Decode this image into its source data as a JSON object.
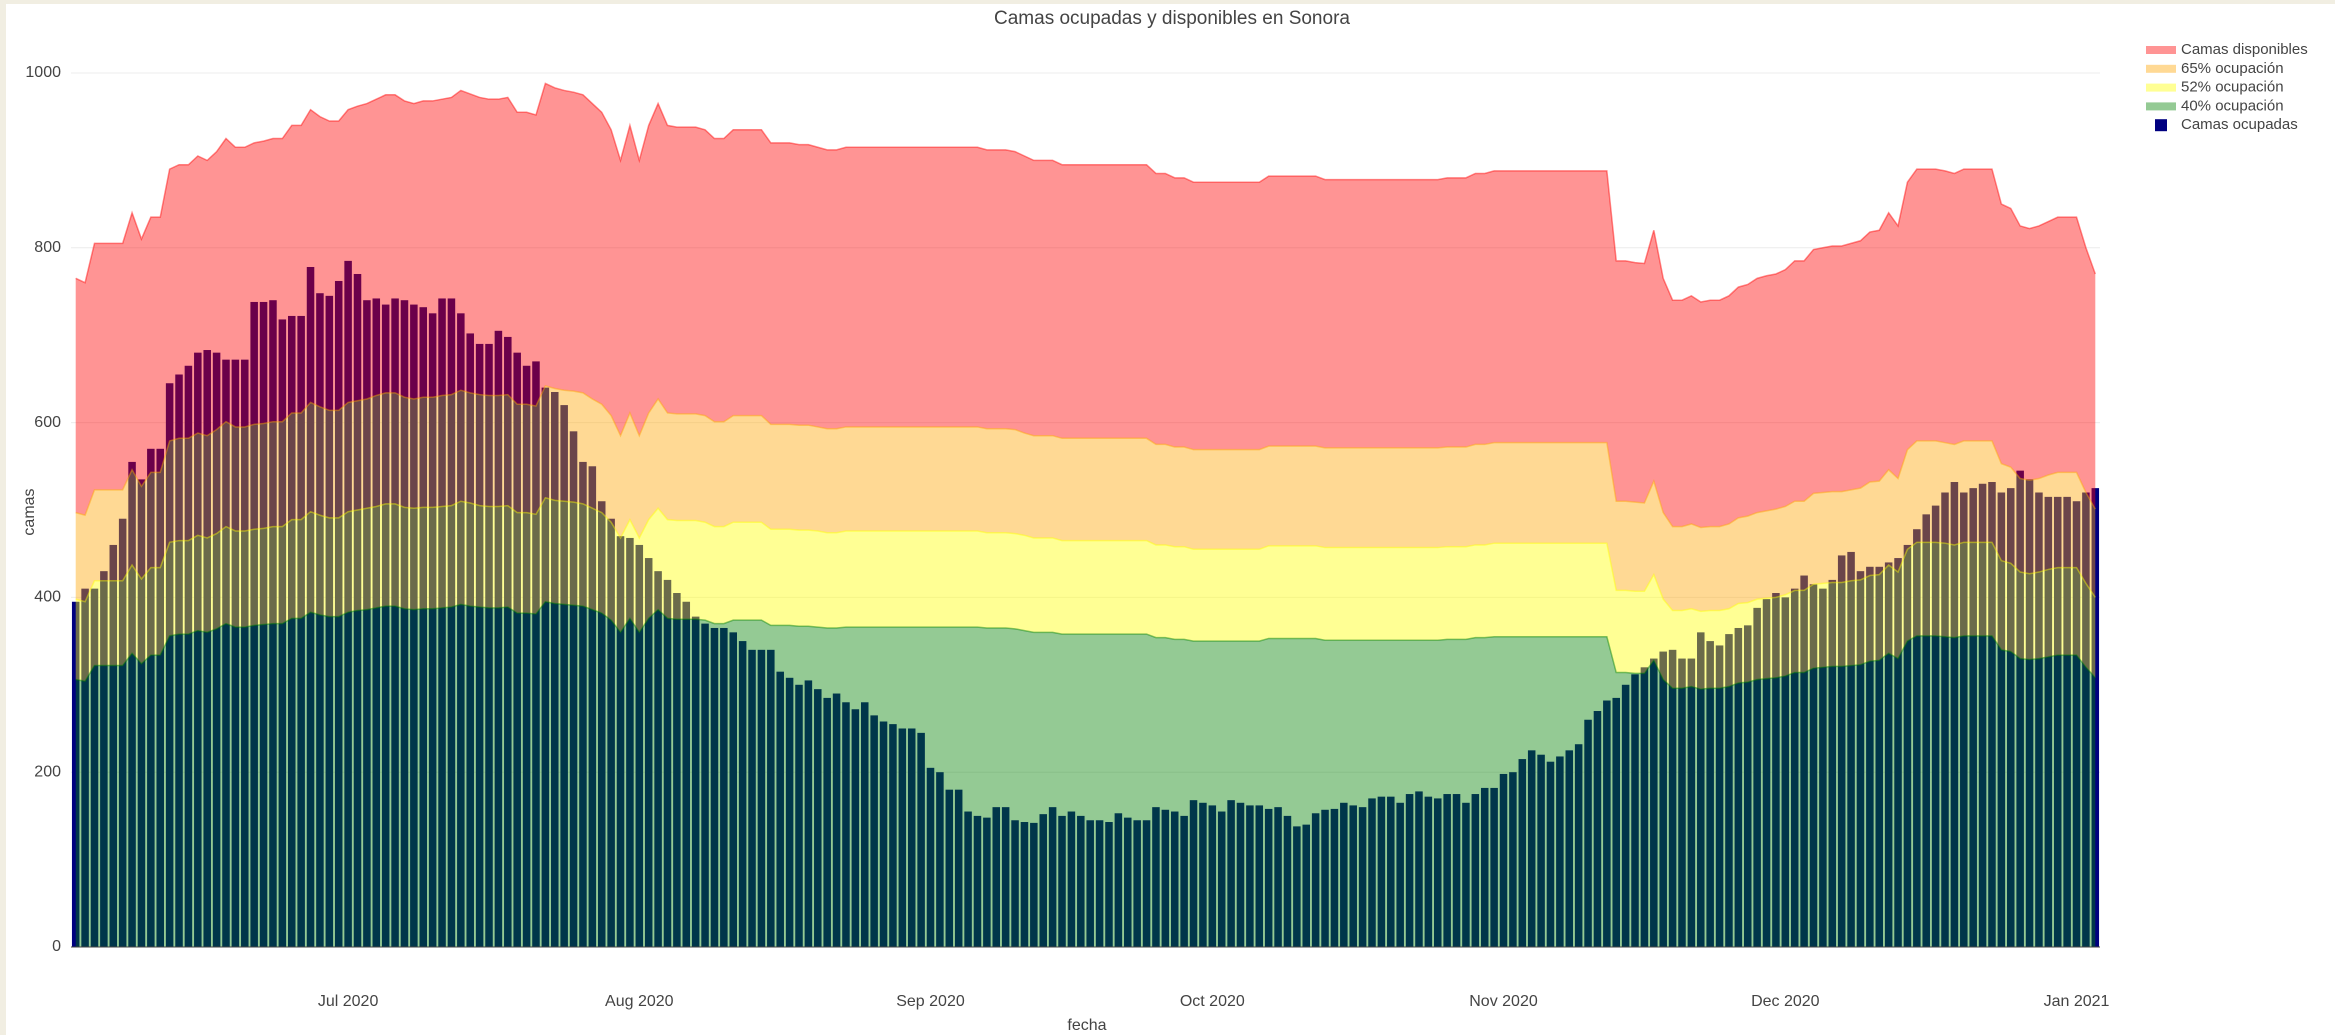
{
  "chart_data": {
    "type": "bar",
    "title": "Camas ocupadas y disponibles en Sonora",
    "x_label": "fecha",
    "y_label": "camas",
    "ylim": [
      0,
      1040
    ],
    "yticks": [
      0,
      200,
      400,
      600,
      800,
      1000
    ],
    "grid": true,
    "categories": [
      null,
      null,
      null,
      null,
      null,
      null,
      null,
      null,
      null,
      null,
      null,
      null,
      null,
      null,
      null,
      null,
      null,
      null,
      null,
      null,
      null,
      null,
      null,
      null,
      null,
      null,
      null,
      null,
      null,
      "Jul 2020",
      null,
      null,
      null,
      null,
      null,
      null,
      null,
      null,
      null,
      null,
      null,
      null,
      null,
      null,
      null,
      null,
      null,
      null,
      null,
      null,
      null,
      null,
      null,
      null,
      null,
      null,
      null,
      null,
      null,
      null,
      "Aug 2020",
      null,
      null,
      null,
      null,
      null,
      null,
      null,
      null,
      null,
      null,
      null,
      null,
      null,
      null,
      null,
      null,
      null,
      null,
      null,
      null,
      null,
      null,
      null,
      null,
      null,
      null,
      null,
      null,
      null,
      null,
      "Sep 2020",
      null,
      null,
      null,
      null,
      null,
      null,
      null,
      null,
      null,
      null,
      null,
      null,
      null,
      null,
      null,
      null,
      null,
      null,
      null,
      null,
      null,
      null,
      null,
      null,
      null,
      null,
      null,
      null,
      null,
      "Oct 2020",
      null,
      null,
      null,
      null,
      null,
      null,
      null,
      null,
      null,
      null,
      null,
      null,
      null,
      null,
      null,
      null,
      null,
      null,
      null,
      null,
      null,
      null,
      null,
      null,
      null,
      null,
      null,
      null,
      null,
      null,
      "Nov 2020",
      null,
      null,
      null,
      null,
      null,
      null,
      null,
      null,
      null,
      null,
      null,
      null,
      null,
      null,
      null,
      null,
      null,
      null,
      null,
      null,
      null,
      null,
      null,
      null,
      null,
      null,
      null,
      null,
      null,
      "Dec 2020",
      null,
      null,
      null,
      null,
      null,
      null,
      null,
      null,
      null,
      null,
      null,
      null,
      null,
      null,
      null,
      null,
      null,
      null,
      null,
      null,
      null,
      null,
      null,
      null,
      null,
      null,
      null,
      null,
      null,
      null,
      "Jan 2021",
      null,
      null
    ],
    "series": [
      {
        "name": "Camas disponibles",
        "type": "area",
        "color": "#ff0000",
        "values": [
          765,
          760,
          805,
          805,
          805,
          805,
          840,
          810,
          835,
          835,
          890,
          895,
          895,
          905,
          900,
          910,
          925,
          915,
          915,
          920,
          922,
          925,
          925,
          940,
          940,
          958,
          950,
          945,
          945,
          958,
          962,
          965,
          970,
          975,
          975,
          968,
          965,
          968,
          968,
          970,
          972,
          980,
          976,
          972,
          970,
          970,
          972,
          955,
          955,
          952,
          988,
          983,
          980,
          978,
          975,
          965,
          955,
          935,
          900,
          940,
          900,
          940,
          965,
          940,
          938,
          938,
          938,
          935,
          925,
          925,
          935,
          935,
          935,
          935,
          920,
          920,
          920,
          918,
          918,
          915,
          912,
          912,
          915,
          915,
          915,
          915,
          915,
          915,
          915,
          915,
          915,
          915,
          915,
          915,
          915,
          915,
          915,
          912,
          912,
          912,
          910,
          905,
          900,
          900,
          900,
          895,
          895,
          895,
          895,
          895,
          895,
          895,
          895,
          895,
          895,
          885,
          885,
          880,
          880,
          875,
          875,
          875,
          875,
          875,
          875,
          875,
          875,
          882,
          882,
          882,
          882,
          882,
          882,
          878,
          878,
          878,
          878,
          878,
          878,
          878,
          878,
          878,
          878,
          878,
          878,
          878,
          880,
          880,
          880,
          885,
          885,
          888,
          888,
          888,
          888,
          888,
          888,
          888,
          888,
          888,
          888,
          888,
          888,
          888,
          785,
          785,
          783,
          782,
          820,
          765,
          740,
          740,
          745,
          738,
          740,
          740,
          745,
          755,
          758,
          765,
          768,
          770,
          775,
          785,
          785,
          798,
          800,
          802,
          802,
          805,
          808,
          818,
          820,
          840,
          825,
          875,
          890,
          890,
          890,
          888,
          885,
          890,
          890,
          890,
          890,
          850,
          845,
          825,
          822,
          825,
          830,
          835,
          835,
          835,
          800,
          770
        ]
      },
      {
        "name": "65% ocupación",
        "type": "area",
        "color": "#ffa500",
        "values": [
          497,
          494,
          523,
          523,
          523,
          523,
          546,
          527,
          543,
          543,
          579,
          582,
          582,
          588,
          585,
          592,
          601,
          595,
          595,
          598,
          599,
          601,
          601,
          611,
          611,
          623,
          618,
          614,
          614,
          623,
          625,
          627,
          631,
          634,
          634,
          629,
          627,
          629,
          629,
          631,
          632,
          637,
          634,
          632,
          631,
          631,
          632,
          621,
          621,
          619,
          642,
          639,
          637,
          636,
          634,
          627,
          621,
          608,
          585,
          611,
          585,
          611,
          627,
          611,
          610,
          610,
          610,
          608,
          601,
          601,
          608,
          608,
          608,
          608,
          598,
          598,
          598,
          597,
          597,
          595,
          593,
          593,
          595,
          595,
          595,
          595,
          595,
          595,
          595,
          595,
          595,
          595,
          595,
          595,
          595,
          595,
          595,
          593,
          593,
          593,
          592,
          588,
          585,
          585,
          585,
          582,
          582,
          582,
          582,
          582,
          582,
          582,
          582,
          582,
          582,
          575,
          575,
          572,
          572,
          569,
          569,
          569,
          569,
          569,
          569,
          569,
          569,
          573,
          573,
          573,
          573,
          573,
          573,
          571,
          571,
          571,
          571,
          571,
          571,
          571,
          571,
          571,
          571,
          571,
          571,
          571,
          572,
          572,
          572,
          575,
          575,
          577,
          577,
          577,
          577,
          577,
          577,
          577,
          577,
          577,
          577,
          577,
          577,
          577,
          510,
          510,
          509,
          508,
          533,
          497,
          481,
          481,
          484,
          480,
          481,
          481,
          484,
          491,
          493,
          497,
          499,
          501,
          504,
          510,
          510,
          519,
          520,
          521,
          521,
          523,
          525,
          532,
          533,
          546,
          536,
          569,
          579,
          579,
          579,
          577,
          575,
          579,
          579,
          579,
          579,
          553,
          549,
          536,
          534,
          536,
          540,
          543,
          543,
          543,
          520,
          501
        ]
      },
      {
        "name": "52% ocupación",
        "type": "area",
        "color": "#ffff00",
        "values": [
          398,
          395,
          419,
          419,
          419,
          419,
          437,
          421,
          434,
          434,
          463,
          465,
          465,
          471,
          468,
          473,
          481,
          476,
          476,
          478,
          479,
          481,
          481,
          489,
          489,
          498,
          494,
          491,
          491,
          498,
          500,
          502,
          504,
          507,
          507,
          503,
          502,
          503,
          503,
          504,
          505,
          510,
          508,
          505,
          504,
          504,
          505,
          497,
          497,
          495,
          514,
          511,
          510,
          509,
          507,
          502,
          497,
          486,
          468,
          489,
          468,
          489,
          502,
          489,
          488,
          488,
          488,
          486,
          481,
          481,
          486,
          486,
          486,
          486,
          478,
          478,
          478,
          477,
          477,
          476,
          474,
          474,
          476,
          476,
          476,
          476,
          476,
          476,
          476,
          476,
          476,
          476,
          476,
          476,
          476,
          476,
          476,
          474,
          474,
          474,
          473,
          471,
          468,
          468,
          468,
          465,
          465,
          465,
          465,
          465,
          465,
          465,
          465,
          465,
          465,
          460,
          460,
          458,
          458,
          455,
          455,
          455,
          455,
          455,
          455,
          455,
          455,
          459,
          459,
          459,
          459,
          459,
          459,
          457,
          457,
          457,
          457,
          457,
          457,
          457,
          457,
          457,
          457,
          457,
          457,
          457,
          458,
          458,
          458,
          460,
          460,
          462,
          462,
          462,
          462,
          462,
          462,
          462,
          462,
          462,
          462,
          462,
          462,
          462,
          408,
          408,
          407,
          407,
          426,
          398,
          385,
          385,
          387,
          384,
          385,
          385,
          387,
          393,
          394,
          398,
          399,
          400,
          403,
          408,
          408,
          415,
          416,
          417,
          417,
          419,
          420,
          425,
          426,
          437,
          429,
          455,
          463,
          463,
          463,
          462,
          460,
          463,
          463,
          463,
          463,
          442,
          439,
          429,
          427,
          429,
          432,
          434,
          434,
          434,
          416,
          400
        ]
      },
      {
        "name": "40% ocupación",
        "type": "area",
        "color": "#008000",
        "values": [
          306,
          304,
          322,
          322,
          322,
          322,
          336,
          324,
          334,
          334,
          356,
          358,
          358,
          362,
          360,
          364,
          370,
          366,
          366,
          368,
          369,
          370,
          370,
          376,
          376,
          383,
          380,
          378,
          378,
          383,
          385,
          386,
          388,
          390,
          390,
          387,
          386,
          387,
          387,
          388,
          389,
          392,
          390,
          389,
          388,
          388,
          389,
          382,
          382,
          381,
          395,
          393,
          392,
          391,
          390,
          386,
          382,
          374,
          360,
          376,
          360,
          376,
          386,
          376,
          375,
          375,
          375,
          374,
          370,
          370,
          374,
          374,
          374,
          374,
          368,
          368,
          368,
          367,
          367,
          366,
          365,
          365,
          366,
          366,
          366,
          366,
          366,
          366,
          366,
          366,
          366,
          366,
          366,
          366,
          366,
          366,
          366,
          365,
          365,
          365,
          364,
          362,
          360,
          360,
          360,
          358,
          358,
          358,
          358,
          358,
          358,
          358,
          358,
          358,
          358,
          354,
          354,
          352,
          352,
          350,
          350,
          350,
          350,
          350,
          350,
          350,
          350,
          353,
          353,
          353,
          353,
          353,
          353,
          351,
          351,
          351,
          351,
          351,
          351,
          351,
          351,
          351,
          351,
          351,
          351,
          351,
          352,
          352,
          352,
          354,
          354,
          355,
          355,
          355,
          355,
          355,
          355,
          355,
          355,
          355,
          355,
          355,
          355,
          355,
          314,
          314,
          313,
          313,
          328,
          306,
          296,
          296,
          298,
          295,
          296,
          296,
          298,
          302,
          303,
          306,
          307,
          308,
          310,
          314,
          314,
          319,
          320,
          321,
          321,
          322,
          323,
          327,
          328,
          336,
          330,
          350,
          356,
          356,
          356,
          355,
          354,
          356,
          356,
          356,
          356,
          340,
          338,
          330,
          329,
          330,
          332,
          334,
          334,
          334,
          320,
          308
        ]
      },
      {
        "name": "Camas ocupadas",
        "type": "bar",
        "color": "#000080",
        "values": [
          395,
          410,
          410,
          430,
          460,
          490,
          555,
          535,
          570,
          570,
          645,
          655,
          665,
          680,
          683,
          680,
          672,
          672,
          672,
          738,
          738,
          740,
          718,
          722,
          722,
          778,
          748,
          745,
          762,
          785,
          770,
          740,
          742,
          735,
          742,
          740,
          735,
          732,
          725,
          742,
          742,
          725,
          702,
          690,
          690,
          705,
          698,
          680,
          665,
          670,
          640,
          635,
          620,
          590,
          555,
          550,
          510,
          490,
          470,
          468,
          460,
          445,
          430,
          420,
          405,
          395,
          378,
          370,
          365,
          365,
          360,
          350,
          340,
          340,
          340,
          315,
          308,
          300,
          305,
          295,
          285,
          290,
          280,
          272,
          280,
          265,
          258,
          255,
          250,
          250,
          245,
          205,
          200,
          180,
          180,
          155,
          150,
          148,
          160,
          160,
          145,
          143,
          142,
          152,
          160,
          150,
          155,
          150,
          145,
          145,
          143,
          153,
          148,
          145,
          145,
          160,
          157,
          155,
          150,
          168,
          165,
          162,
          155,
          168,
          165,
          162,
          162,
          158,
          160,
          150,
          138,
          140,
          153,
          157,
          158,
          165,
          162,
          160,
          170,
          172,
          172,
          165,
          175,
          178,
          172,
          170,
          175,
          175,
          165,
          175,
          182,
          182,
          198,
          200,
          215,
          225,
          220,
          212,
          218,
          225,
          232,
          260,
          270,
          282,
          285,
          300,
          312,
          320,
          330,
          338,
          340,
          330,
          330,
          360,
          350,
          345,
          358,
          365,
          368,
          388,
          398,
          405,
          400,
          410,
          425,
          415,
          410,
          420,
          448,
          452,
          430,
          435,
          435,
          440,
          445,
          460,
          478,
          495,
          505,
          520,
          532,
          520,
          525,
          530,
          532,
          520,
          525,
          545,
          535,
          520,
          515,
          515,
          515,
          510,
          520,
          525
        ]
      }
    ]
  }
}
